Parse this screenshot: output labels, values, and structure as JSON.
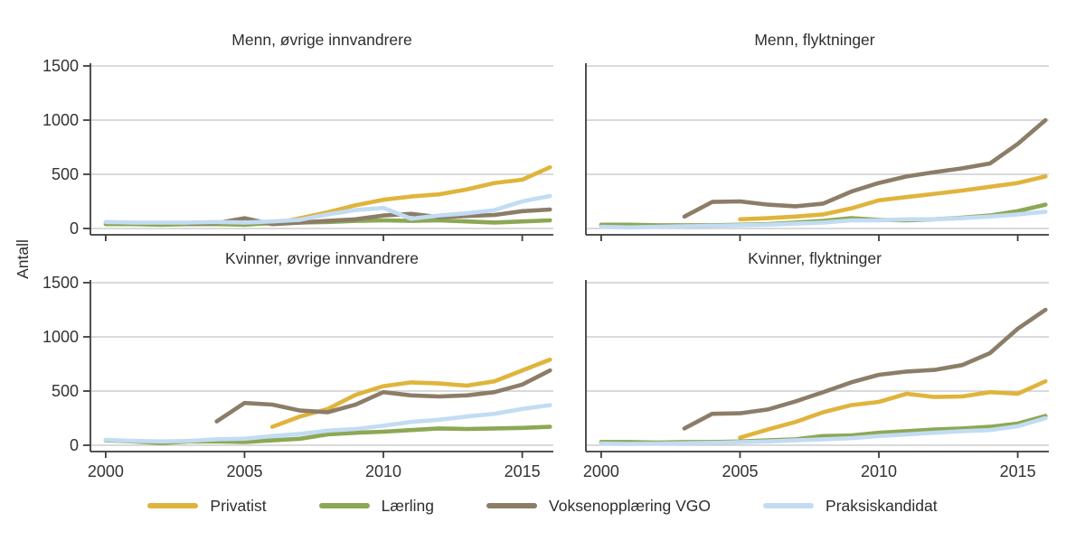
{
  "chart_data": {
    "type": "line",
    "ylabel": "Antall",
    "x": [
      2000,
      2001,
      2002,
      2003,
      2004,
      2005,
      2006,
      2007,
      2008,
      2009,
      2010,
      2011,
      2012,
      2013,
      2014,
      2015,
      2016
    ],
    "xticks": [
      2000,
      2005,
      2010,
      2015
    ],
    "yticks": [
      0,
      500,
      1000,
      1500
    ],
    "ylim": [
      0,
      1500
    ],
    "grid": "horizontal-only",
    "legend_position": "bottom",
    "series_names": [
      "Privatist",
      "Lærling",
      "Voksenopplæring VGO",
      "Praksiskandidat"
    ],
    "series_colors": [
      "#E0B43C",
      "#8CA854",
      "#8C7D68",
      "#C2DCF3"
    ],
    "colors": {
      "grid": "#c3c3c3",
      "axis": "#3c3c3c",
      "text": "#333333"
    },
    "panels": [
      {
        "title": "Menn, øvrige innvandrere",
        "series": {
          "Privatist": [
            null,
            null,
            null,
            null,
            null,
            null,
            45,
            95,
            150,
            215,
            265,
            295,
            315,
            360,
            420,
            450,
            565
          ],
          "Lærling": [
            40,
            40,
            35,
            40,
            40,
            35,
            50,
            55,
            60,
            70,
            75,
            70,
            75,
            65,
            55,
            65,
            75
          ],
          "Voksenopplæring VGO": [
            null,
            null,
            null,
            45,
            50,
            95,
            40,
            55,
            70,
            85,
            120,
            135,
            105,
            115,
            125,
            160,
            175
          ],
          "Praksiskandidat": [
            60,
            55,
            55,
            55,
            60,
            55,
            65,
            80,
            130,
            170,
            190,
            90,
            120,
            140,
            170,
            250,
            300
          ]
        }
      },
      {
        "title": "Menn, flyktninger",
        "series": {
          "Privatist": [
            null,
            null,
            null,
            null,
            null,
            85,
            95,
            110,
            130,
            185,
            260,
            290,
            320,
            350,
            385,
            420,
            480
          ],
          "Lærling": [
            35,
            35,
            30,
            30,
            30,
            35,
            40,
            55,
            70,
            95,
            80,
            75,
            85,
            100,
            120,
            160,
            220
          ],
          "Voksenopplæring VGO": [
            null,
            null,
            null,
            110,
            245,
            250,
            220,
            205,
            230,
            340,
            420,
            480,
            520,
            555,
            600,
            780,
            1000
          ],
          "Praksiskandidat": [
            15,
            10,
            15,
            20,
            25,
            30,
            35,
            45,
            55,
            75,
            75,
            85,
            85,
            95,
            110,
            130,
            155
          ]
        }
      },
      {
        "title": "Kvinner, øvrige innvandrere",
        "series": {
          "Privatist": [
            null,
            null,
            null,
            null,
            null,
            null,
            170,
            265,
            335,
            465,
            545,
            580,
            570,
            550,
            590,
            690,
            790
          ],
          "Lærling": [
            45,
            35,
            20,
            35,
            35,
            30,
            45,
            60,
            100,
            115,
            125,
            140,
            155,
            150,
            155,
            160,
            170
          ],
          "Voksenopplæring VGO": [
            null,
            null,
            null,
            null,
            220,
            390,
            375,
            320,
            305,
            375,
            490,
            460,
            450,
            460,
            490,
            560,
            690
          ],
          "Praksiskandidat": [
            50,
            40,
            35,
            40,
            55,
            60,
            85,
            105,
            135,
            150,
            180,
            215,
            235,
            265,
            290,
            335,
            370
          ]
        }
      },
      {
        "title": "Kvinner, flyktninger",
        "series": {
          "Privatist": [
            null,
            null,
            null,
            null,
            null,
            70,
            145,
            215,
            305,
            370,
            400,
            475,
            445,
            450,
            490,
            475,
            590
          ],
          "Lærling": [
            30,
            30,
            25,
            30,
            30,
            35,
            45,
            55,
            85,
            90,
            115,
            130,
            145,
            155,
            170,
            200,
            270
          ],
          "Voksenopplæring VGO": [
            null,
            null,
            null,
            155,
            290,
            295,
            330,
            405,
            490,
            580,
            650,
            680,
            695,
            740,
            850,
            1075,
            1250
          ],
          "Praksiskandidat": [
            15,
            12,
            15,
            18,
            22,
            28,
            35,
            45,
            55,
            65,
            85,
            100,
            115,
            130,
            140,
            175,
            250
          ]
        }
      }
    ]
  }
}
